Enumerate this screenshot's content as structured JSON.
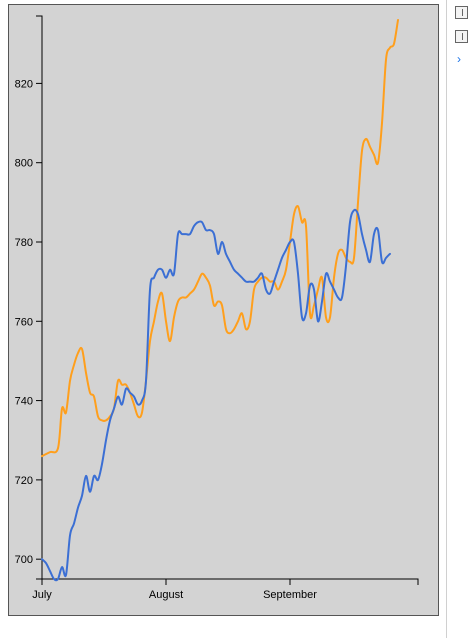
{
  "chart_data": {
    "type": "line",
    "title": "",
    "xlabel": "",
    "ylabel": "",
    "x_ticks": [
      "July",
      "August",
      "September"
    ],
    "y_ticks": [
      700,
      720,
      740,
      760,
      780,
      800,
      820
    ],
    "ylim": [
      695,
      837
    ],
    "x_range": [
      1,
      95
    ],
    "grid": false,
    "legend": "none",
    "series": [
      {
        "color": "#ff9f1c",
        "points": [
          [
            1,
            726
          ],
          [
            3,
            727
          ],
          [
            5,
            728
          ],
          [
            6,
            738
          ],
          [
            7,
            737
          ],
          [
            8,
            745
          ],
          [
            9,
            749
          ],
          [
            10,
            752
          ],
          [
            11,
            753
          ],
          [
            12,
            747
          ],
          [
            13,
            742
          ],
          [
            14,
            741
          ],
          [
            15,
            736
          ],
          [
            16,
            735
          ],
          [
            17,
            735
          ],
          [
            18,
            736
          ],
          [
            19,
            738
          ],
          [
            20,
            745
          ],
          [
            21,
            744
          ],
          [
            22,
            744
          ],
          [
            23,
            742
          ],
          [
            24,
            739
          ],
          [
            25,
            736
          ],
          [
            26,
            737
          ],
          [
            27,
            745
          ],
          [
            28,
            755
          ],
          [
            29,
            760
          ],
          [
            30,
            765
          ],
          [
            31,
            767
          ],
          [
            32,
            760
          ],
          [
            33,
            755
          ],
          [
            34,
            761
          ],
          [
            35,
            765
          ],
          [
            36,
            766
          ],
          [
            37,
            766
          ],
          [
            38,
            767
          ],
          [
            39,
            768
          ],
          [
            40,
            770
          ],
          [
            41,
            772
          ],
          [
            42,
            771
          ],
          [
            43,
            769
          ],
          [
            44,
            764
          ],
          [
            45,
            765
          ],
          [
            46,
            764
          ],
          [
            47,
            758
          ],
          [
            48,
            757
          ],
          [
            49,
            758
          ],
          [
            50,
            760
          ],
          [
            51,
            762
          ],
          [
            52,
            758
          ],
          [
            53,
            760
          ],
          [
            54,
            768
          ],
          [
            55,
            770
          ],
          [
            56,
            771
          ],
          [
            57,
            771
          ],
          [
            58,
            770
          ],
          [
            59,
            770
          ],
          [
            60,
            768
          ],
          [
            61,
            770
          ],
          [
            62,
            773
          ],
          [
            63,
            780
          ],
          [
            64,
            787
          ],
          [
            65,
            789
          ],
          [
            66,
            785
          ],
          [
            67,
            784
          ],
          [
            68,
            762
          ],
          [
            69,
            764
          ],
          [
            70,
            768
          ],
          [
            71,
            771
          ],
          [
            72,
            761
          ],
          [
            73,
            761
          ],
          [
            74,
            771
          ],
          [
            75,
            777
          ],
          [
            76,
            778
          ],
          [
            77,
            776
          ],
          [
            78,
            775
          ],
          [
            79,
            776
          ],
          [
            80,
            790
          ],
          [
            81,
            803
          ],
          [
            82,
            806
          ],
          [
            83,
            804
          ],
          [
            84,
            802
          ],
          [
            85,
            800
          ],
          [
            86,
            810
          ],
          [
            87,
            826
          ],
          [
            88,
            829
          ],
          [
            89,
            830
          ],
          [
            90,
            836
          ]
        ]
      },
      {
        "color": "#3b6fd4",
        "points": [
          [
            1,
            700
          ],
          [
            2,
            699
          ],
          [
            3,
            697
          ],
          [
            4,
            695
          ],
          [
            5,
            695
          ],
          [
            6,
            698
          ],
          [
            7,
            696
          ],
          [
            8,
            706
          ],
          [
            9,
            709
          ],
          [
            10,
            713
          ],
          [
            11,
            716
          ],
          [
            12,
            721
          ],
          [
            13,
            717
          ],
          [
            14,
            721
          ],
          [
            15,
            720
          ],
          [
            16,
            724
          ],
          [
            17,
            730
          ],
          [
            18,
            735
          ],
          [
            19,
            738
          ],
          [
            20,
            741
          ],
          [
            21,
            739
          ],
          [
            22,
            743
          ],
          [
            23,
            742
          ],
          [
            24,
            741
          ],
          [
            25,
            739
          ],
          [
            26,
            740
          ],
          [
            27,
            745
          ],
          [
            28,
            768
          ],
          [
            29,
            771
          ],
          [
            30,
            773
          ],
          [
            31,
            773
          ],
          [
            32,
            771
          ],
          [
            33,
            773
          ],
          [
            34,
            772
          ],
          [
            35,
            782
          ],
          [
            36,
            782
          ],
          [
            37,
            782
          ],
          [
            38,
            782
          ],
          [
            39,
            784
          ],
          [
            40,
            785
          ],
          [
            41,
            785
          ],
          [
            42,
            783
          ],
          [
            43,
            783
          ],
          [
            44,
            782
          ],
          [
            45,
            777
          ],
          [
            46,
            780
          ],
          [
            47,
            777
          ],
          [
            48,
            775
          ],
          [
            49,
            773
          ],
          [
            50,
            772
          ],
          [
            51,
            771
          ],
          [
            52,
            770
          ],
          [
            53,
            770
          ],
          [
            54,
            770
          ],
          [
            55,
            771
          ],
          [
            56,
            772
          ],
          [
            57,
            768
          ],
          [
            58,
            767
          ],
          [
            59,
            770
          ],
          [
            60,
            773
          ],
          [
            61,
            776
          ],
          [
            62,
            778
          ],
          [
            63,
            780
          ],
          [
            64,
            780
          ],
          [
            65,
            772
          ],
          [
            66,
            761
          ],
          [
            67,
            762
          ],
          [
            68,
            769
          ],
          [
            69,
            768
          ],
          [
            70,
            760
          ],
          [
            71,
            765
          ],
          [
            72,
            772
          ],
          [
            73,
            770
          ],
          [
            74,
            768
          ],
          [
            75,
            766
          ],
          [
            76,
            766
          ],
          [
            77,
            774
          ],
          [
            78,
            785
          ],
          [
            79,
            788
          ],
          [
            80,
            787
          ],
          [
            81,
            782
          ],
          [
            82,
            778
          ],
          [
            83,
            775
          ],
          [
            84,
            782
          ],
          [
            85,
            783
          ],
          [
            86,
            775
          ],
          [
            87,
            776
          ],
          [
            88,
            777
          ]
        ]
      }
    ]
  },
  "side_panel": {
    "buttons": [
      "toggle-panel-icon",
      "collapse-panel-icon"
    ],
    "chevron_icon": "chevron-right-icon",
    "chevron": "›"
  }
}
